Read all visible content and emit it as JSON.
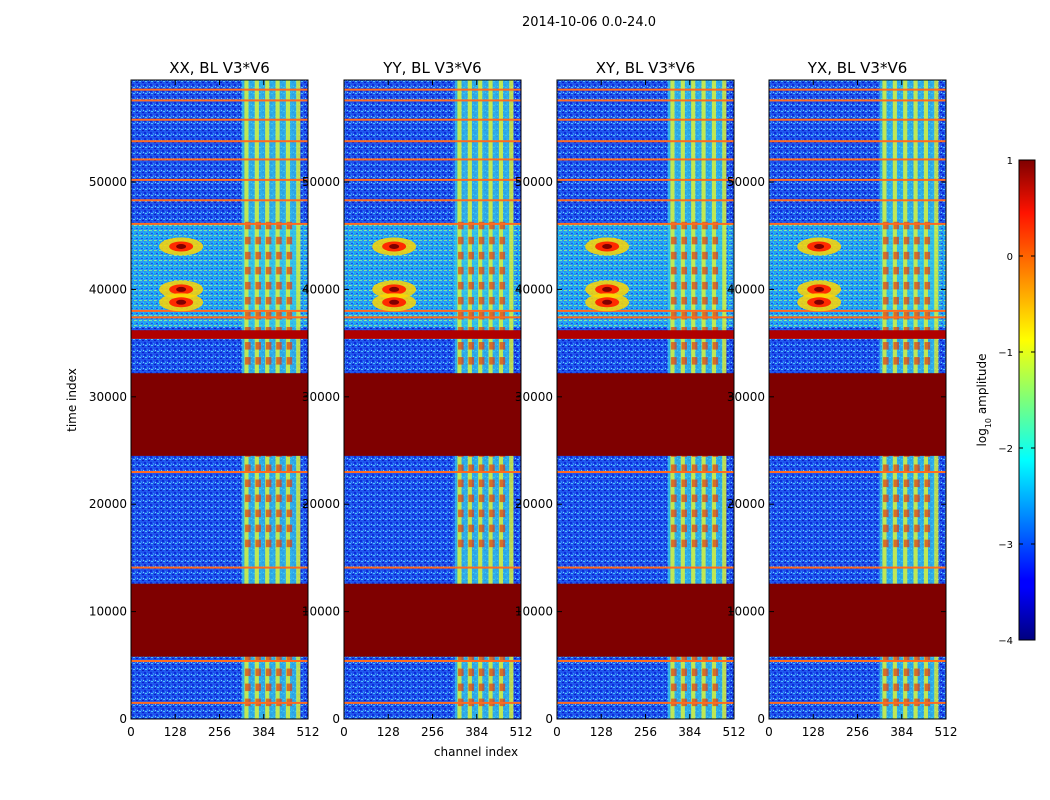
{
  "suptitle": "2014-10-06 0.0-24.0",
  "chart_data": {
    "type": "heatmap",
    "panels": [
      {
        "title": "XX, BL V3*V6"
      },
      {
        "title": "YY, BL V3*V6"
      },
      {
        "title": "XY, BL V3*V6"
      },
      {
        "title": "YX, BL V3*V6"
      }
    ],
    "xlabel": "channel index",
    "ylabel": "time index",
    "xlim": [
      0,
      512
    ],
    "ylim": [
      0,
      59500
    ],
    "xticks": [
      0,
      128,
      256,
      384,
      512
    ],
    "yticks": [
      0,
      10000,
      20000,
      30000,
      40000,
      50000
    ],
    "colorbar": {
      "label": "log10 amplitude",
      "label_base": "log",
      "label_sub": "10",
      "label_rest": " amplitude",
      "range": [
        -4,
        1
      ],
      "ticks": [
        1,
        0,
        -1,
        -2,
        -3,
        -4
      ],
      "tick_labels": [
        "1",
        "0",
        "−1",
        "−2",
        "−3",
        "−4"
      ],
      "colormap": "jet"
    },
    "saturated_time_blocks": [
      [
        24500,
        32200
      ],
      [
        5800,
        12600
      ]
    ],
    "hot_horizontal_lines": [
      1500,
      5400,
      14100,
      23000,
      35500,
      37400,
      38000,
      46100,
      48300,
      50200,
      52100,
      53800,
      55800,
      57600,
      58600
    ],
    "rfi_channel_band": [
      320,
      480
    ],
    "bright_features": [
      {
        "channel": 145,
        "time": 44000
      },
      {
        "channel": 145,
        "time": 40000
      },
      {
        "channel": 145,
        "time": 38800
      }
    ]
  }
}
